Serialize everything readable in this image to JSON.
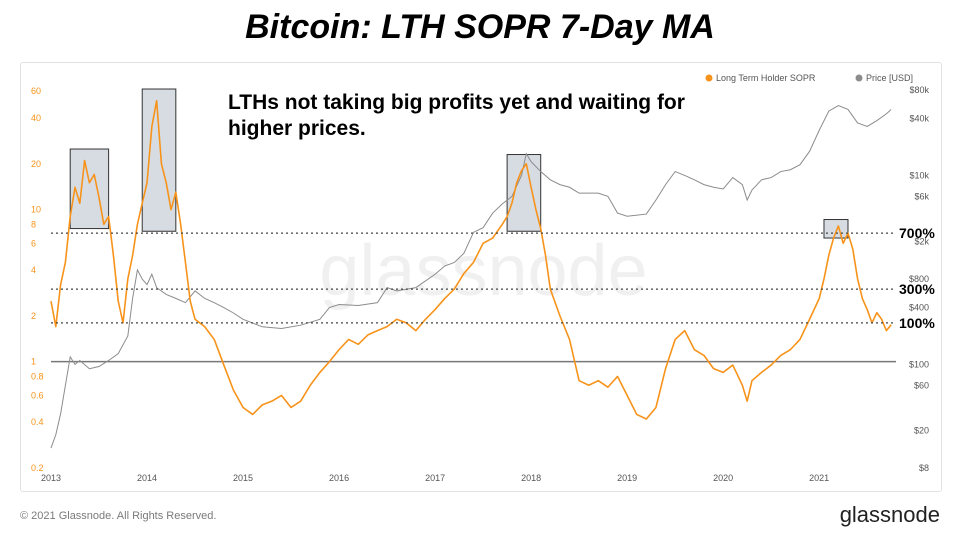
{
  "title": "Bitcoin: LTH SOPR 7-Day MA",
  "annotation": "LTHs not taking big profits yet and waiting for higher prices.",
  "watermark": "glassnode",
  "footer": {
    "copyright": "© 2021 Glassnode. All Rights Reserved.",
    "logo": "glassnode"
  },
  "colors": {
    "sopr": "#f7931a",
    "price": "#8c8c8c",
    "baseline": "#777777",
    "box_fill": "#c9d0da",
    "box_stroke": "#333333"
  },
  "chart_data": {
    "type": "line",
    "title": "Bitcoin: LTH SOPR 7-Day MA",
    "legend": {
      "placement": "top-right",
      "entries": [
        "Long Term Holder SOPR",
        "Price [USD]"
      ]
    },
    "x_ticks": [
      "2013",
      "2014",
      "2015",
      "2016",
      "2017",
      "2018",
      "2019",
      "2020",
      "2021"
    ],
    "x_range": [
      2013.0,
      2021.8
    ],
    "y_left": {
      "scale": "log",
      "range": [
        0.2,
        70
      ],
      "ticks": [
        "0.2",
        "0.4",
        "0.6",
        "0.8",
        "1",
        "2",
        "4",
        "6",
        "8",
        "10",
        "20",
        "40",
        "60"
      ]
    },
    "y_right": {
      "scale": "log",
      "range": [
        8,
        100000
      ],
      "ticks": [
        "$8",
        "$20",
        "$60",
        "$100",
        "$400",
        "$800",
        "$2k",
        "$6k",
        "$10k",
        "$40k",
        "$80k"
      ]
    },
    "reference_lines": [
      {
        "value": 7,
        "label": "700%"
      },
      {
        "value": 3,
        "label": "300%"
      },
      {
        "value": 1.8,
        "label": "100%"
      }
    ],
    "baseline": 1,
    "highlight_boxes": [
      {
        "x": [
          2013.2,
          2013.6
        ],
        "y": [
          7.5,
          25
        ]
      },
      {
        "x": [
          2013.95,
          2014.3
        ],
        "y": [
          7.2,
          62
        ]
      },
      {
        "x": [
          2017.75,
          2018.1
        ],
        "y": [
          7.2,
          23
        ]
      },
      {
        "x": [
          2021.05,
          2021.3
        ],
        "y": [
          6.5,
          8.6
        ]
      }
    ],
    "series": [
      {
        "name": "Long Term Holder SOPR",
        "axis": "left",
        "x": [
          2013.0,
          2013.05,
          2013.1,
          2013.15,
          2013.2,
          2013.25,
          2013.3,
          2013.35,
          2013.4,
          2013.45,
          2013.5,
          2013.55,
          2013.6,
          2013.65,
          2013.7,
          2013.75,
          2013.8,
          2013.85,
          2013.9,
          2013.95,
          2014.0,
          2014.05,
          2014.1,
          2014.15,
          2014.2,
          2014.25,
          2014.3,
          2014.35,
          2014.4,
          2014.45,
          2014.5,
          2014.6,
          2014.7,
          2014.8,
          2014.9,
          2015.0,
          2015.1,
          2015.2,
          2015.3,
          2015.4,
          2015.5,
          2015.6,
          2015.7,
          2015.8,
          2015.9,
          2016.0,
          2016.1,
          2016.2,
          2016.3,
          2016.4,
          2016.5,
          2016.6,
          2016.7,
          2016.8,
          2016.9,
          2017.0,
          2017.1,
          2017.2,
          2017.3,
          2017.4,
          2017.5,
          2017.6,
          2017.7,
          2017.75,
          2017.8,
          2017.85,
          2017.9,
          2017.95,
          2018.0,
          2018.05,
          2018.1,
          2018.15,
          2018.2,
          2018.3,
          2018.4,
          2018.5,
          2018.6,
          2018.7,
          2018.8,
          2018.9,
          2019.0,
          2019.1,
          2019.2,
          2019.3,
          2019.4,
          2019.5,
          2019.6,
          2019.7,
          2019.8,
          2019.9,
          2020.0,
          2020.1,
          2020.2,
          2020.25,
          2020.3,
          2020.4,
          2020.5,
          2020.6,
          2020.7,
          2020.8,
          2020.9,
          2021.0,
          2021.05,
          2021.1,
          2021.15,
          2021.2,
          2021.25,
          2021.3,
          2021.35,
          2021.4,
          2021.45,
          2021.5,
          2021.55,
          2021.6,
          2021.65,
          2021.7,
          2021.75
        ],
        "values": [
          2.5,
          1.7,
          3.2,
          4.5,
          9.0,
          14.0,
          11.0,
          21.0,
          15.0,
          17.0,
          12.0,
          8.0,
          9.0,
          5.0,
          2.5,
          1.8,
          3.5,
          5.0,
          8.0,
          11.0,
          15.0,
          35.0,
          52.0,
          20.0,
          15.0,
          10.0,
          13.0,
          8.0,
          4.5,
          2.5,
          1.9,
          1.7,
          1.4,
          0.95,
          0.65,
          0.5,
          0.45,
          0.52,
          0.55,
          0.6,
          0.5,
          0.55,
          0.7,
          0.85,
          1.0,
          1.2,
          1.4,
          1.3,
          1.5,
          1.6,
          1.7,
          1.9,
          1.8,
          1.6,
          1.9,
          2.2,
          2.6,
          3.0,
          3.8,
          4.5,
          6.0,
          6.5,
          8.0,
          9.0,
          11.0,
          15.0,
          18.0,
          20.0,
          14.0,
          10.0,
          7.5,
          5.0,
          3.0,
          2.0,
          1.4,
          0.75,
          0.7,
          0.75,
          0.68,
          0.8,
          0.6,
          0.45,
          0.42,
          0.5,
          0.9,
          1.4,
          1.6,
          1.2,
          1.1,
          0.9,
          0.85,
          0.95,
          0.7,
          0.55,
          0.75,
          0.85,
          0.95,
          1.1,
          1.2,
          1.4,
          1.9,
          2.6,
          3.5,
          5.0,
          6.5,
          7.8,
          6.0,
          7.0,
          5.5,
          3.5,
          2.6,
          2.2,
          1.8,
          2.1,
          1.9,
          1.6,
          1.75
        ]
      },
      {
        "name": "Price [USD]",
        "axis": "right",
        "x": [
          2013.0,
          2013.05,
          2013.1,
          2013.15,
          2013.2,
          2013.25,
          2013.3,
          2013.4,
          2013.5,
          2013.6,
          2013.7,
          2013.8,
          2013.85,
          2013.9,
          2013.95,
          2014.0,
          2014.05,
          2014.1,
          2014.2,
          2014.3,
          2014.4,
          2014.5,
          2014.6,
          2014.7,
          2014.8,
          2014.9,
          2015.0,
          2015.2,
          2015.4,
          2015.6,
          2015.8,
          2015.9,
          2016.0,
          2016.2,
          2016.4,
          2016.5,
          2016.6,
          2016.8,
          2017.0,
          2017.1,
          2017.2,
          2017.3,
          2017.4,
          2017.5,
          2017.6,
          2017.7,
          2017.8,
          2017.9,
          2017.95,
          2018.0,
          2018.1,
          2018.2,
          2018.3,
          2018.4,
          2018.5,
          2018.6,
          2018.7,
          2018.8,
          2018.9,
          2019.0,
          2019.2,
          2019.3,
          2019.4,
          2019.5,
          2019.6,
          2019.7,
          2019.8,
          2019.9,
          2020.0,
          2020.1,
          2020.2,
          2020.25,
          2020.3,
          2020.4,
          2020.5,
          2020.6,
          2020.7,
          2020.8,
          2020.9,
          2021.0,
          2021.1,
          2021.2,
          2021.3,
          2021.4,
          2021.5,
          2021.6,
          2021.7,
          2021.75
        ],
        "values": [
          13,
          18,
          30,
          60,
          120,
          100,
          110,
          90,
          95,
          110,
          130,
          200,
          500,
          1000,
          800,
          700,
          900,
          650,
          550,
          500,
          450,
          600,
          500,
          450,
          400,
          350,
          300,
          250,
          240,
          260,
          300,
          400,
          430,
          420,
          450,
          650,
          600,
          650,
          900,
          1100,
          1200,
          1500,
          2500,
          2800,
          4000,
          5000,
          6000,
          10000,
          17000,
          14000,
          11000,
          9000,
          8000,
          7500,
          6500,
          6500,
          6500,
          6000,
          4000,
          3700,
          3900,
          5500,
          8000,
          11000,
          10000,
          9000,
          8000,
          7500,
          7200,
          9500,
          8000,
          5500,
          7000,
          9000,
          9500,
          11000,
          11500,
          13000,
          18000,
          30000,
          48000,
          55000,
          50000,
          36000,
          33000,
          38000,
          45000,
          50000
        ]
      }
    ]
  }
}
